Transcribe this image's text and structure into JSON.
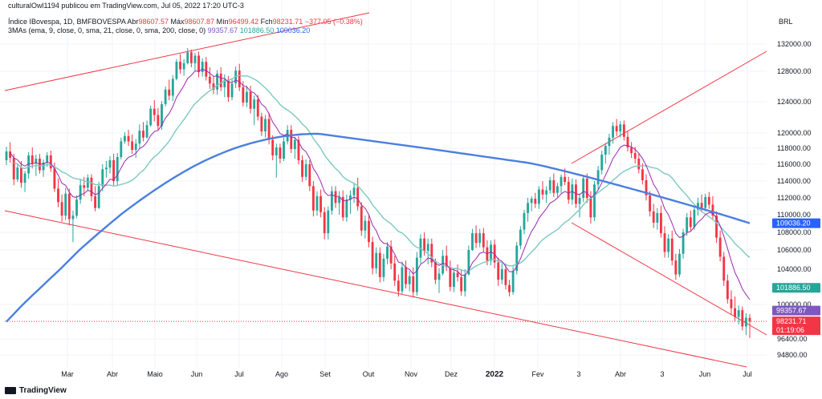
{
  "header": {
    "published": "culturalOwl1194 publicou em TradingView.com, Jul 05, 2022 17:20 UTC-3",
    "symbol": "Índice IBovespa, 1D, BMFBOVESPA",
    "o_label": "Abr",
    "o": "98607.57",
    "h_label": "Máx",
    "h": "98607.87",
    "l_label": "Mín",
    "l": "96499.42",
    "c_label": "Fch",
    "c": "98231.71",
    "change": "−377.05 (−0.38%)",
    "ma_label": "3MAs (ema, 9, close, 0, sma, 21, close, 0, sma, 200, close, 0)",
    "ma1": "99357.67",
    "ma2": "101886.50",
    "ma3": "109036.20"
  },
  "footer": {
    "brand": "TradingView"
  },
  "colors": {
    "up": "#26a69a",
    "down": "#f23645",
    "ema9": "#9c27b0",
    "sma21": "#7ec8c0",
    "sma200": "#4a7fe0",
    "trend": "#f23645",
    "price_line": "#f23645"
  },
  "chart_data": {
    "type": "candlestick",
    "currency": "BRL",
    "y_ticks": [
      "132000.00",
      "128000.00",
      "124000.00",
      "120000.00",
      "118000.00",
      "116000.00",
      "114000.00",
      "112000.00",
      "110000.00",
      "108000.00",
      "106000.00",
      "104000.00",
      "100000.00",
      "96400.00",
      "94800.00"
    ],
    "x_ticks": [
      "Mar",
      "Abr",
      "Maio",
      "Jun",
      "Jul",
      "Ago",
      "Set",
      "Out",
      "Nov",
      "Dez",
      "2022",
      "Fev",
      "3",
      "Abr",
      "3",
      "Jun",
      "Jul"
    ],
    "price_labels": [
      {
        "text": "109036.20",
        "color": "#2962ff",
        "value": 109036.2
      },
      {
        "text": "101886.50",
        "color": "#26a69a",
        "value": 101886.5
      },
      {
        "text": "99357.67",
        "color": "#7e57c2",
        "value": 99357.67
      },
      {
        "text": "98231.71",
        "color": "#f23645",
        "value": 98231.71
      },
      {
        "text": "01:19:06",
        "color": "#f23645",
        "value": 98231.71
      }
    ],
    "ohlc": [
      [
        116.5,
        118.2,
        115.9,
        117.6
      ],
      [
        117.6,
        118.8,
        116.2,
        116.8
      ],
      [
        116.8,
        117.3,
        113.5,
        114.2
      ],
      [
        114.2,
        116.1,
        113.9,
        115.6
      ],
      [
        115.6,
        116.4,
        113.2,
        113.8
      ],
      [
        113.8,
        115.2,
        112.7,
        114.9
      ],
      [
        114.9,
        117.5,
        114.3,
        117.1
      ],
      [
        117.1,
        118.1,
        115.5,
        116.1
      ],
      [
        116.1,
        117.2,
        114.6,
        116.7
      ],
      [
        116.7,
        117.3,
        114.9,
        115.3
      ],
      [
        115.3,
        116.6,
        114.5,
        116.2
      ],
      [
        116.2,
        117.5,
        115.7,
        117.1
      ],
      [
        117.1,
        117.7,
        115.1,
        115.5
      ],
      [
        115.5,
        116.2,
        112.7,
        113.1
      ],
      [
        113.1,
        114.3,
        110.9,
        111.5
      ],
      [
        111.5,
        112.4,
        109.2,
        109.9
      ],
      [
        109.9,
        113.2,
        109.4,
        112.5
      ],
      [
        112.5,
        113.1,
        108.8,
        109.5
      ],
      [
        109.5,
        110.5,
        106.9,
        109.9
      ],
      [
        109.9,
        112.3,
        109.6,
        111.8
      ],
      [
        111.8,
        114.2,
        111.3,
        113.5
      ],
      [
        113.5,
        114.5,
        112.2,
        113.2
      ],
      [
        113.2,
        114.8,
        112.9,
        114.4
      ],
      [
        114.4,
        114.8,
        111.6,
        112.2
      ],
      [
        112.2,
        113.4,
        110.4,
        110.8
      ],
      [
        110.8,
        113.9,
        110.7,
        113.4
      ],
      [
        113.4,
        116.0,
        112.8,
        115.4
      ],
      [
        115.4,
        116.4,
        114.4,
        115.6
      ],
      [
        115.6,
        117.0,
        114.9,
        116.5
      ],
      [
        116.5,
        117.3,
        113.5,
        114.0
      ],
      [
        114.0,
        117.4,
        113.4,
        116.9
      ],
      [
        116.9,
        119.4,
        116.6,
        118.9
      ],
      [
        118.9,
        120.1,
        118.6,
        119.6
      ],
      [
        119.6,
        120.4,
        118.3,
        118.9
      ],
      [
        118.9,
        119.8,
        117.3,
        117.8
      ],
      [
        117.8,
        119.2,
        116.8,
        118.6
      ],
      [
        118.6,
        121.1,
        117.9,
        120.3
      ],
      [
        120.3,
        121.4,
        118.9,
        119.4
      ],
      [
        119.4,
        121.6,
        119.3,
        121.0
      ],
      [
        121.0,
        123.5,
        120.8,
        123.1
      ],
      [
        123.1,
        124.2,
        121.5,
        122.3
      ],
      [
        122.3,
        123.2,
        120.4,
        120.9
      ],
      [
        120.9,
        124.1,
        120.4,
        123.7
      ],
      [
        123.7,
        126.0,
        123.4,
        125.6
      ],
      [
        125.6,
        126.9,
        124.2,
        124.8
      ],
      [
        124.8,
        127.5,
        124.1,
        127.0
      ],
      [
        127.0,
        129.8,
        126.8,
        129.4
      ],
      [
        129.4,
        130.5,
        127.7,
        128.3
      ],
      [
        128.3,
        129.8,
        127.4,
        129.2
      ],
      [
        129.2,
        131.4,
        129.0,
        130.8
      ],
      [
        130.8,
        131.2,
        128.6,
        129.2
      ],
      [
        129.2,
        130.7,
        128.1,
        130.3
      ],
      [
        130.3,
        130.9,
        127.2,
        127.9
      ],
      [
        127.9,
        129.9,
        127.3,
        129.4
      ],
      [
        129.4,
        130.1,
        126.8,
        127.3
      ],
      [
        127.3,
        128.6,
        125.7,
        126.4
      ],
      [
        126.4,
        127.4,
        125.0,
        125.6
      ],
      [
        125.6,
        128.2,
        124.9,
        127.7
      ],
      [
        127.7,
        128.6,
        125.4,
        125.9
      ],
      [
        125.9,
        127.6,
        124.6,
        126.9
      ],
      [
        126.9,
        127.4,
        124.0,
        124.6
      ],
      [
        124.6,
        127.1,
        124.2,
        126.4
      ],
      [
        126.4,
        128.7,
        125.8,
        128.1
      ],
      [
        128.1,
        129.1,
        125.4,
        125.9
      ],
      [
        125.9,
        126.7,
        123.4,
        123.9
      ],
      [
        123.9,
        126.1,
        123.3,
        125.3
      ],
      [
        125.3,
        126.1,
        122.5,
        123.1
      ],
      [
        123.1,
        124.8,
        121.0,
        124.3
      ],
      [
        124.3,
        124.9,
        121.6,
        122.1
      ],
      [
        122.1,
        122.6,
        119.6,
        120.2
      ],
      [
        120.2,
        122.3,
        119.4,
        121.8
      ],
      [
        121.8,
        122.6,
        118.5,
        119.1
      ],
      [
        119.1,
        119.7,
        116.5,
        117.1
      ],
      [
        117.1,
        118.6,
        114.4,
        118.1
      ],
      [
        118.1,
        118.6,
        116.1,
        116.7
      ],
      [
        116.7,
        119.4,
        116.4,
        118.9
      ],
      [
        118.9,
        121.0,
        118.5,
        120.4
      ],
      [
        120.4,
        121.0,
        117.4,
        117.9
      ],
      [
        117.9,
        119.5,
        116.7,
        119.1
      ],
      [
        119.1,
        119.6,
        116.0,
        116.5
      ],
      [
        116.5,
        117.1,
        113.9,
        114.5
      ],
      [
        114.5,
        116.6,
        114.1,
        116.0
      ],
      [
        116.0,
        116.5,
        112.8,
        113.4
      ],
      [
        113.4,
        114.0,
        109.8,
        110.5
      ],
      [
        110.5,
        112.8,
        109.9,
        112.2
      ],
      [
        112.2,
        113.0,
        109.7,
        110.3
      ],
      [
        110.3,
        110.9,
        107.2,
        107.9
      ],
      [
        107.9,
        111.0,
        107.2,
        110.5
      ],
      [
        110.5,
        113.4,
        110.0,
        112.8
      ],
      [
        112.8,
        113.4,
        110.8,
        111.4
      ],
      [
        111.4,
        112.8,
        110.0,
        112.1
      ],
      [
        112.1,
        112.9,
        109.3,
        109.7
      ],
      [
        109.7,
        112.4,
        109.2,
        111.8
      ],
      [
        111.8,
        112.9,
        110.1,
        112.3
      ],
      [
        112.3,
        113.7,
        111.4,
        113.2
      ],
      [
        113.2,
        114.4,
        110.5,
        111.0
      ],
      [
        111.0,
        111.5,
        107.6,
        108.2
      ],
      [
        108.2,
        109.9,
        107.3,
        109.3
      ],
      [
        109.3,
        110.0,
        106.3,
        106.9
      ],
      [
        106.9,
        107.5,
        103.4,
        104.1
      ],
      [
        104.1,
        106.3,
        103.5,
        105.7
      ],
      [
        105.7,
        106.3,
        102.5,
        103.1
      ],
      [
        103.1,
        105.6,
        102.6,
        105.1
      ],
      [
        105.1,
        106.9,
        104.5,
        106.4
      ],
      [
        106.4,
        107.1,
        104.0,
        104.6
      ],
      [
        104.6,
        105.4,
        102.1,
        102.7
      ],
      [
        102.7,
        103.4,
        100.9,
        101.5
      ],
      [
        101.5,
        104.8,
        101.2,
        104.2
      ],
      [
        104.2,
        104.9,
        101.8,
        102.3
      ],
      [
        102.3,
        103.8,
        101.5,
        103.2
      ],
      [
        103.2,
        104.2,
        100.8,
        101.4
      ],
      [
        101.4,
        105.8,
        101.0,
        105.2
      ],
      [
        105.2,
        107.8,
        104.6,
        107.3
      ],
      [
        107.3,
        108.0,
        105.4,
        105.9
      ],
      [
        105.9,
        107.3,
        104.5,
        106.7
      ],
      [
        106.7,
        107.3,
        104.2,
        104.7
      ],
      [
        104.7,
        105.1,
        102.3,
        102.8
      ],
      [
        102.8,
        104.1,
        101.3,
        103.5
      ],
      [
        103.5,
        106.0,
        103.3,
        105.4
      ],
      [
        105.4,
        106.5,
        103.8,
        104.2
      ],
      [
        104.2,
        104.9,
        101.5,
        102.0
      ],
      [
        102.0,
        104.1,
        101.4,
        103.6
      ],
      [
        103.6,
        104.5,
        102.6,
        103.1
      ],
      [
        103.1,
        103.9,
        101.0,
        101.5
      ],
      [
        101.5,
        104.0,
        100.9,
        103.4
      ],
      [
        103.4,
        106.5,
        103.3,
        106.0
      ],
      [
        106.0,
        108.4,
        105.9,
        107.9
      ],
      [
        107.9,
        108.8,
        106.2,
        106.8
      ],
      [
        106.8,
        108.4,
        106.3,
        107.9
      ],
      [
        107.9,
        108.5,
        105.8,
        106.3
      ],
      [
        106.3,
        107.1,
        104.4,
        104.9
      ],
      [
        104.9,
        107.1,
        104.4,
        106.6
      ],
      [
        106.6,
        107.2,
        104.1,
        104.7
      ],
      [
        104.7,
        105.2,
        102.1,
        102.8
      ],
      [
        102.8,
        104.6,
        102.3,
        104.0
      ],
      [
        104.0,
        104.6,
        101.7,
        102.2
      ],
      [
        102.2,
        102.8,
        100.9,
        101.4
      ],
      [
        101.4,
        104.3,
        101.1,
        103.8
      ],
      [
        103.8,
        106.9,
        103.4,
        106.5
      ],
      [
        106.5,
        108.7,
        106.1,
        108.3
      ],
      [
        108.3,
        110.6,
        107.8,
        110.2
      ],
      [
        110.2,
        112.0,
        109.2,
        111.4
      ],
      [
        111.4,
        112.2,
        110.4,
        111.9
      ],
      [
        111.9,
        112.6,
        110.8,
        111.3
      ],
      [
        111.3,
        113.4,
        110.7,
        113.0
      ],
      [
        113.0,
        114.0,
        111.8,
        112.4
      ],
      [
        112.4,
        113.4,
        111.4,
        112.9
      ],
      [
        112.9,
        114.5,
        112.5,
        114.1
      ],
      [
        114.1,
        114.9,
        112.1,
        112.6
      ],
      [
        112.6,
        113.8,
        112.1,
        113.4
      ],
      [
        113.4,
        114.8,
        112.6,
        114.5
      ],
      [
        114.5,
        115.5,
        113.5,
        113.9
      ],
      [
        113.9,
        114.5,
        111.3,
        111.8
      ],
      [
        111.8,
        114.3,
        111.2,
        113.6
      ],
      [
        113.6,
        114.2,
        110.8,
        111.3
      ],
      [
        111.3,
        112.5,
        109.7,
        112.0
      ],
      [
        112.0,
        114.7,
        111.5,
        114.3
      ],
      [
        114.3,
        114.9,
        111.4,
        112.0
      ],
      [
        112.0,
        112.8,
        109.0,
        109.7
      ],
      [
        109.7,
        114.0,
        109.3,
        113.6
      ],
      [
        113.6,
        115.8,
        112.9,
        115.3
      ],
      [
        115.3,
        117.7,
        114.8,
        117.2
      ],
      [
        117.2,
        118.7,
        116.1,
        118.3
      ],
      [
        118.3,
        119.9,
        117.2,
        119.4
      ],
      [
        119.4,
        121.4,
        118.6,
        120.9
      ],
      [
        120.9,
        121.8,
        119.6,
        120.2
      ],
      [
        120.2,
        121.5,
        119.4,
        121.1
      ],
      [
        121.1,
        121.6,
        119.0,
        119.5
      ],
      [
        119.5,
        120.2,
        117.6,
        118.1
      ],
      [
        118.1,
        118.8,
        116.8,
        117.4
      ],
      [
        117.4,
        118.2,
        116.1,
        116.7
      ],
      [
        116.7,
        117.4,
        114.9,
        115.4
      ],
      [
        115.4,
        116.1,
        113.6,
        114.1
      ],
      [
        114.1,
        114.8,
        111.7,
        112.3
      ],
      [
        112.3,
        112.8,
        109.8,
        110.4
      ],
      [
        110.4,
        111.3,
        108.5,
        109.1
      ],
      [
        109.1,
        110.8,
        108.3,
        110.2
      ],
      [
        110.2,
        111.1,
        107.4,
        107.9
      ],
      [
        107.9,
        108.7,
        105.2,
        105.8
      ],
      [
        105.8,
        107.8,
        105.2,
        107.3
      ],
      [
        107.3,
        108.2,
        104.4,
        104.9
      ],
      [
        104.9,
        105.6,
        102.8,
        103.4
      ],
      [
        103.4,
        106.1,
        103.1,
        105.6
      ],
      [
        105.6,
        108.4,
        105.1,
        108.0
      ],
      [
        108.0,
        110.2,
        107.6,
        109.7
      ],
      [
        109.7,
        110.5,
        108.2,
        108.6
      ],
      [
        108.6,
        111.0,
        108.3,
        110.6
      ],
      [
        110.6,
        112.0,
        109.9,
        111.4
      ],
      [
        111.4,
        112.4,
        110.3,
        110.8
      ],
      [
        110.8,
        112.5,
        110.4,
        112.1
      ],
      [
        112.1,
        112.7,
        110.7,
        111.2
      ],
      [
        111.2,
        112.2,
        109.4,
        109.9
      ],
      [
        109.9,
        110.4,
        106.8,
        107.4
      ],
      [
        107.4,
        108.2,
        104.8,
        105.3
      ],
      [
        105.3,
        105.8,
        102.1,
        102.7
      ],
      [
        102.7,
        103.4,
        100.1,
        100.6
      ],
      [
        100.6,
        101.6,
        98.9,
        99.6
      ],
      [
        99.6,
        100.9,
        98.2,
        98.7
      ],
      [
        98.7,
        99.9,
        97.9,
        99.4
      ],
      [
        99.4,
        99.8,
        97.3,
        97.7
      ],
      [
        97.7,
        99.1,
        96.8,
        98.6
      ],
      [
        98.6,
        99.0,
        96.5,
        98.2
      ]
    ]
  }
}
